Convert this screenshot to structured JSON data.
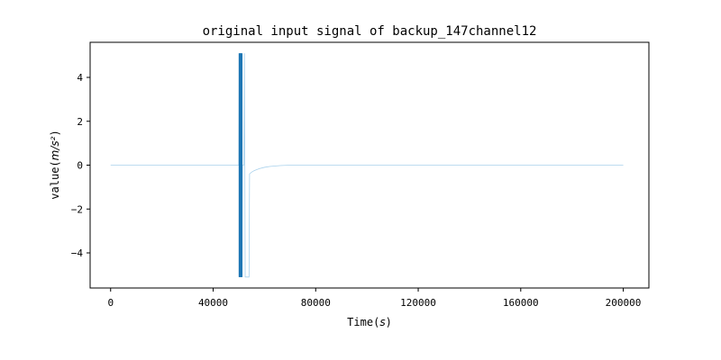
{
  "chart_data": {
    "type": "line",
    "title": "original input signal of backup_147channel12",
    "xlabel": "Time",
    "xlabel_unit": "s",
    "ylabel": "value",
    "ylabel_unit": "m/s²",
    "xlim": [
      -8000,
      210000
    ],
    "ylim": [
      -5.6,
      5.6
    ],
    "x_ticks": [
      0,
      40000,
      80000,
      120000,
      160000,
      200000
    ],
    "x_tick_labels": [
      "0",
      "40000",
      "80000",
      "120000",
      "160000",
      "200000"
    ],
    "y_ticks": [
      -4,
      -2,
      0,
      2,
      4
    ],
    "y_tick_labels": [
      "−4",
      "−2",
      "0",
      "2",
      "4"
    ],
    "grid": false,
    "legend": "none",
    "colors": {
      "line": "#1f77b4",
      "line_light": "#a8d1ec"
    },
    "series": [
      {
        "values_note": "",
        "x": [
          0,
          10000,
          20000,
          30000,
          40000,
          50000,
          50200,
          50400,
          50600,
          50800,
          51000,
          51200,
          51400,
          51600,
          51800,
          52000,
          52200,
          52500,
          53000,
          53200,
          53500,
          54000,
          54200,
          55000,
          56000,
          58000,
          60000,
          62000,
          64000,
          66000,
          70000,
          80000,
          100000,
          120000,
          140000,
          160000,
          180000,
          200000
        ],
        "y": [
          0.0,
          0.0,
          0.0,
          0.0,
          0.0,
          0.0,
          5.1,
          -5.1,
          5.1,
          -5.1,
          5.1,
          -5.1,
          0.0,
          0.0,
          0.0,
          0.0,
          5.1,
          -5.1,
          -5.1,
          -5.1,
          -5.1,
          -5.1,
          -0.4,
          -0.32,
          -0.25,
          -0.16,
          -0.1,
          -0.06,
          -0.04,
          -0.02,
          0.0,
          0.0,
          0.0,
          0.0,
          0.0,
          0.0,
          0.0,
          0.0
        ]
      }
    ]
  }
}
